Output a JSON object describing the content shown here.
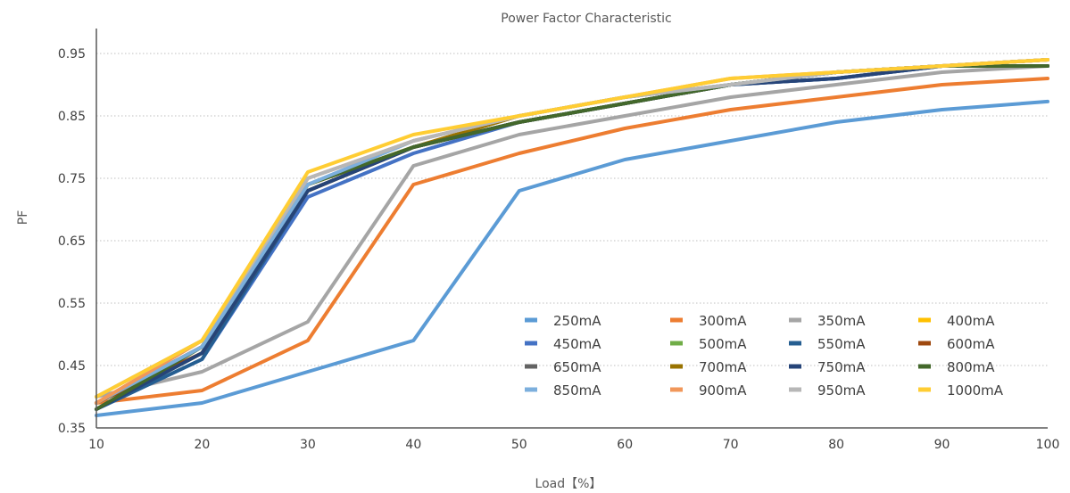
{
  "chart_data": {
    "type": "line",
    "title": "Power Factor Characteristic",
    "xlabel": "Load【%】",
    "ylabel": "PF",
    "x": [
      10,
      20,
      30,
      40,
      50,
      60,
      70,
      80,
      90,
      100
    ],
    "x_tick_labels": [
      "10",
      "20",
      "30",
      "40",
      "50",
      "60",
      "70",
      "80",
      "90",
      "100"
    ],
    "xlim": [
      10,
      100
    ],
    "y_ticks": [
      0.35,
      0.45,
      0.55,
      0.65,
      0.75,
      0.85,
      0.95
    ],
    "y_tick_labels": [
      "0.35",
      "0.45",
      "0.55",
      "0.65",
      "0.75",
      "0.85",
      "0.95"
    ],
    "ylim": [
      0.35,
      0.99
    ],
    "grid": "horizontal dotted",
    "legend_position": "bottom-right",
    "series": [
      {
        "name": "250mA",
        "color": "#5B9BD5",
        "values": [
          0.37,
          0.39,
          0.44,
          0.49,
          0.73,
          0.78,
          0.81,
          0.84,
          0.86,
          0.873
        ]
      },
      {
        "name": "300mA",
        "color": "#ED7D31",
        "values": [
          0.39,
          0.41,
          0.49,
          0.74,
          0.79,
          0.83,
          0.86,
          0.88,
          0.9,
          0.91
        ]
      },
      {
        "name": "350mA",
        "color": "#A5A5A5",
        "values": [
          0.4,
          0.44,
          0.52,
          0.77,
          0.82,
          0.85,
          0.88,
          0.9,
          0.92,
          0.93
        ]
      },
      {
        "name": "400mA",
        "color": "#FFC000",
        "values": [
          0.39,
          0.48,
          0.74,
          0.8,
          0.84,
          0.87,
          0.9,
          0.92,
          0.93,
          0.94
        ]
      },
      {
        "name": "450mA",
        "color": "#4472C4",
        "values": [
          0.38,
          0.46,
          0.72,
          0.79,
          0.84,
          0.87,
          0.9,
          0.91,
          0.93,
          0.93
        ]
      },
      {
        "name": "500mA",
        "color": "#70AD47",
        "values": [
          0.38,
          0.47,
          0.73,
          0.8,
          0.84,
          0.87,
          0.9,
          0.92,
          0.93,
          0.93
        ]
      },
      {
        "name": "550mA",
        "color": "#255E91",
        "values": [
          0.38,
          0.46,
          0.73,
          0.8,
          0.84,
          0.87,
          0.9,
          0.91,
          0.93,
          0.93
        ]
      },
      {
        "name": "600mA",
        "color": "#9E480E",
        "values": [
          0.39,
          0.47,
          0.73,
          0.8,
          0.84,
          0.87,
          0.9,
          0.92,
          0.93,
          0.94
        ]
      },
      {
        "name": "650mA",
        "color": "#636363",
        "values": [
          0.39,
          0.48,
          0.73,
          0.8,
          0.84,
          0.87,
          0.9,
          0.92,
          0.93,
          0.93
        ]
      },
      {
        "name": "700mA",
        "color": "#997300",
        "values": [
          0.39,
          0.48,
          0.74,
          0.8,
          0.85,
          0.88,
          0.9,
          0.92,
          0.93,
          0.94
        ]
      },
      {
        "name": "750mA",
        "color": "#264478",
        "values": [
          0.38,
          0.47,
          0.73,
          0.8,
          0.84,
          0.87,
          0.9,
          0.91,
          0.93,
          0.93
        ]
      },
      {
        "name": "800mA",
        "color": "#43682B",
        "values": [
          0.38,
          0.48,
          0.74,
          0.8,
          0.84,
          0.87,
          0.9,
          0.92,
          0.93,
          0.93
        ]
      },
      {
        "name": "850mA",
        "color": "#7CAFDD",
        "values": [
          0.39,
          0.48,
          0.74,
          0.81,
          0.85,
          0.88,
          0.9,
          0.92,
          0.93,
          0.94
        ]
      },
      {
        "name": "900mA",
        "color": "#F1975A",
        "values": [
          0.39,
          0.49,
          0.75,
          0.81,
          0.85,
          0.88,
          0.91,
          0.92,
          0.93,
          0.94
        ]
      },
      {
        "name": "950mA",
        "color": "#B7B7B7",
        "values": [
          0.4,
          0.49,
          0.75,
          0.81,
          0.85,
          0.88,
          0.9,
          0.92,
          0.93,
          0.94
        ]
      },
      {
        "name": "1000mA",
        "color": "#FFCD33",
        "values": [
          0.4,
          0.49,
          0.76,
          0.82,
          0.85,
          0.88,
          0.91,
          0.92,
          0.93,
          0.94
        ]
      }
    ]
  }
}
